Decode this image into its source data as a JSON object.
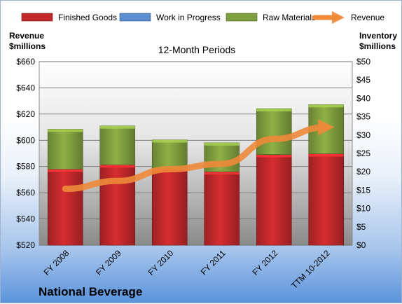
{
  "company": "National Beverage",
  "chart_data": {
    "type": "bar",
    "subtitle": "12-Month Periods",
    "categories": [
      "FY 2008",
      "FY 2009",
      "FY 2010",
      "FY 2011",
      "FY 2012",
      "TTM 10-2012"
    ],
    "left_axis": {
      "title_line1": "Revenue",
      "title_line2": "$millions",
      "range": [
        520,
        660
      ],
      "ticks": [
        520,
        540,
        560,
        580,
        600,
        620,
        640,
        660
      ],
      "tick_labels": [
        "$520",
        "$540",
        "$560",
        "$580",
        "$600",
        "$620",
        "$640",
        "$660"
      ]
    },
    "right_axis": {
      "title_line1": "Inventory",
      "title_line2": "$millions",
      "range": [
        0,
        50
      ],
      "ticks": [
        0,
        5,
        10,
        15,
        20,
        25,
        30,
        35,
        40,
        45,
        50
      ],
      "tick_labels": [
        "$0",
        "$5",
        "$10",
        "$15",
        "$20",
        "$25",
        "$30",
        "$35",
        "$40",
        "$45",
        "$50"
      ]
    },
    "bar_series": [
      {
        "name": "Finished Goods",
        "color": "#c0282b",
        "axis": "right",
        "values": [
          20.7,
          21.9,
          20.8,
          20.0,
          24.7,
          24.9
        ]
      },
      {
        "name": "Work in Progress",
        "color": "#5b8fd0",
        "axis": "right",
        "values": [
          0,
          0,
          0,
          0,
          0,
          0
        ]
      },
      {
        "name": "Raw Materials",
        "color": "#7f9e3e",
        "axis": "right",
        "values": [
          10.9,
          10.6,
          7.9,
          7.9,
          12.5,
          13.4
        ]
      }
    ],
    "line_series": {
      "name": "Revenue",
      "color": "#ee8a3a",
      "axis": "left",
      "values": [
        563,
        569,
        578,
        582,
        601,
        610
      ]
    },
    "grid": true,
    "legend_position": "top"
  }
}
